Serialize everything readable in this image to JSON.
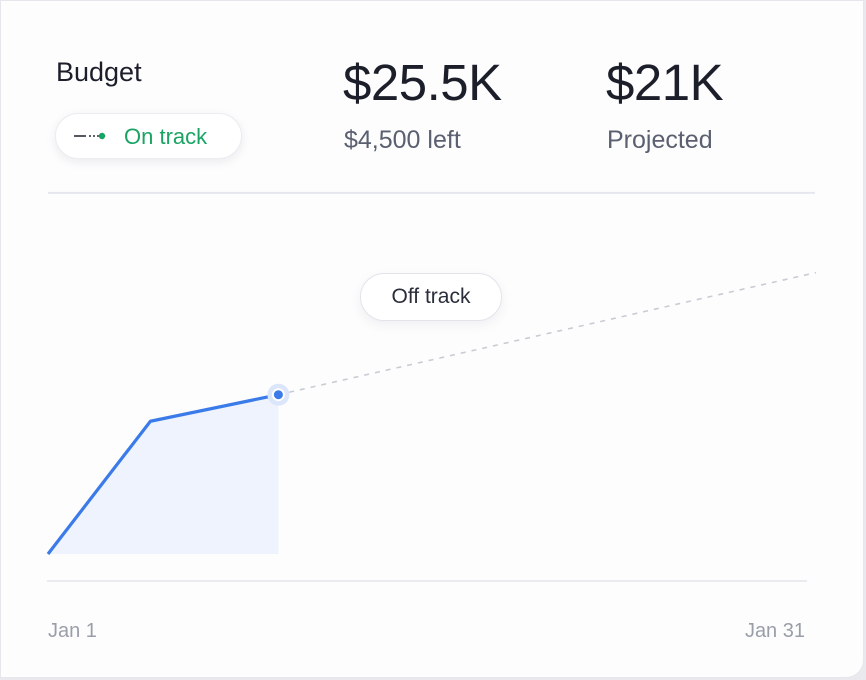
{
  "budget": {
    "title": "Budget",
    "status": "On track",
    "status_color": "#1aa463"
  },
  "stats": [
    {
      "value": "$25.5K",
      "sub": "$4,500 left"
    },
    {
      "value": "$21K",
      "sub": "Projected"
    }
  ],
  "chart_data": {
    "type": "line",
    "x_labels": [
      "Jan 1",
      "Jan 31"
    ],
    "x_range": [
      1,
      31
    ],
    "threshold_label": "Off track",
    "series": [
      {
        "kind": "actual",
        "x": [
          1,
          5,
          10
        ],
        "y": [
          0,
          0.25,
          0.3
        ],
        "color": "#3b7be9"
      },
      {
        "kind": "projection",
        "x": [
          10,
          31
        ],
        "y": [
          0.3,
          0.53
        ],
        "color": "#c9ccd3"
      }
    ],
    "threshold": 0.68,
    "y_range": [
      0,
      1
    ],
    "grid": false
  }
}
